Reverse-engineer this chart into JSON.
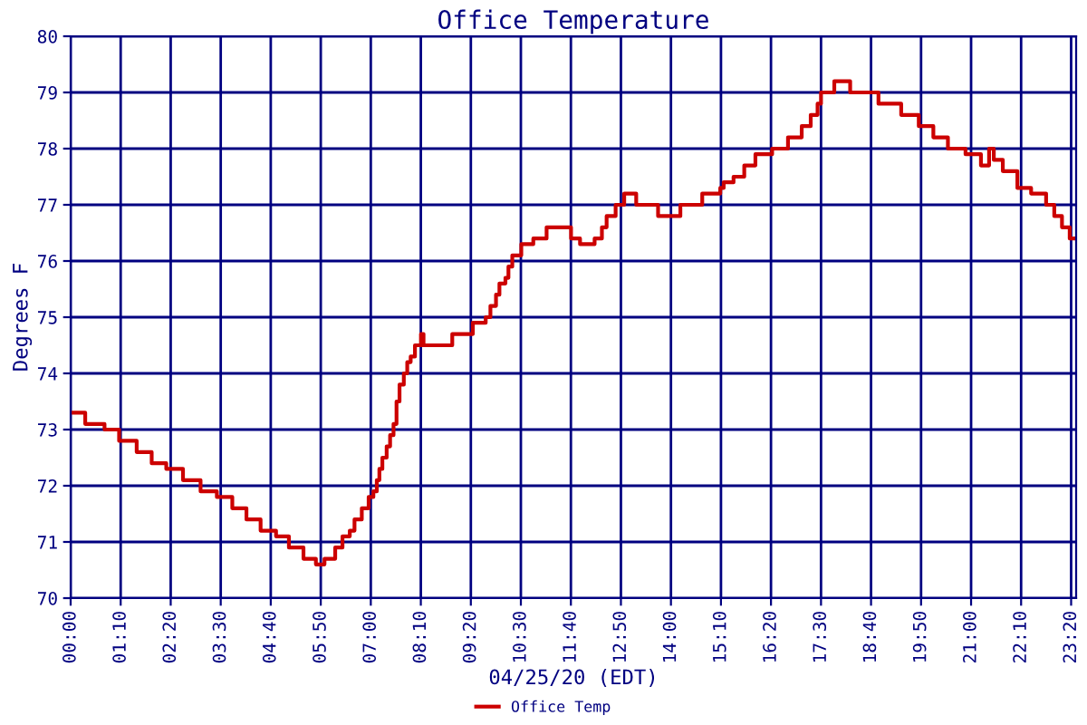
{
  "chart_data": {
    "type": "step",
    "title": "Office Temperature",
    "xlabel": "04/25/20 (EDT)",
    "ylabel": "Degrees F",
    "x": [
      0,
      0.34,
      0.79,
      1.13,
      1.54,
      1.89,
      2.23,
      2.62,
      3.03,
      3.41,
      3.77,
      4.1,
      4.43,
      4.79,
      5.09,
      5.43,
      5.72,
      5.92,
      6.17,
      6.34,
      6.51,
      6.62,
      6.79,
      6.95,
      7.06,
      7.14,
      7.2,
      7.27,
      7.37,
      7.45,
      7.53,
      7.6,
      7.67,
      7.77,
      7.85,
      7.93,
      8.03,
      8.17,
      8.23,
      8.9,
      9.38,
      9.68,
      9.79,
      9.92,
      10.0,
      10.14,
      10.21,
      10.3,
      10.51,
      10.79,
      11.1,
      11.67,
      11.88,
      12.22,
      12.39,
      12.5,
      12.71,
      12.91,
      13.19,
      13.7,
      14.22,
      14.73,
      15.15,
      15.23,
      15.46,
      15.71,
      15.97,
      16.36,
      16.73,
      17.05,
      17.26,
      17.42,
      17.5,
      17.81,
      18.18,
      18.84,
      19.37,
      19.78,
      20.12,
      20.46,
      20.87,
      21.23,
      21.42,
      21.53,
      21.74,
      22.08,
      22.4,
      22.75,
      22.94,
      23.12,
      23.3,
      23.45
    ],
    "series": [
      {
        "name": "Office Temp",
        "color": "#cc0000",
        "values": [
          73.3,
          73.1,
          73.0,
          72.8,
          72.6,
          72.4,
          72.3,
          72.1,
          71.9,
          71.8,
          71.6,
          71.4,
          71.2,
          71.1,
          70.9,
          70.7,
          70.6,
          70.7,
          70.9,
          71.1,
          71.2,
          71.4,
          71.6,
          71.8,
          71.9,
          72.1,
          72.3,
          72.5,
          72.7,
          72.9,
          73.1,
          73.5,
          73.8,
          74.0,
          74.2,
          74.3,
          74.5,
          74.7,
          74.5,
          74.7,
          74.9,
          75.0,
          75.2,
          75.4,
          75.6,
          75.7,
          75.9,
          76.1,
          76.3,
          76.4,
          76.6,
          76.4,
          76.3,
          76.4,
          76.6,
          76.8,
          77.0,
          77.2,
          77.0,
          76.8,
          77.0,
          77.2,
          77.3,
          77.4,
          77.5,
          77.7,
          77.9,
          78.0,
          78.2,
          78.4,
          78.6,
          78.8,
          79.0,
          79.2,
          79.0,
          78.8,
          78.6,
          78.4,
          78.2,
          78.0,
          77.9,
          77.7,
          78.0,
          77.8,
          77.6,
          77.3,
          77.2,
          77.0,
          76.8,
          76.6,
          76.4,
          76.4
        ]
      }
    ],
    "xlim": [
      0,
      23.45
    ],
    "xticks": [
      {
        "value": 0,
        "label": "00:00"
      },
      {
        "value": 1.1667,
        "label": "01:10"
      },
      {
        "value": 2.3333,
        "label": "02:20"
      },
      {
        "value": 3.5,
        "label": "03:30"
      },
      {
        "value": 4.6667,
        "label": "04:40"
      },
      {
        "value": 5.8333,
        "label": "05:50"
      },
      {
        "value": 7,
        "label": "07:00"
      },
      {
        "value": 8.1667,
        "label": "08:10"
      },
      {
        "value": 9.3333,
        "label": "09:20"
      },
      {
        "value": 10.5,
        "label": "10:30"
      },
      {
        "value": 11.6667,
        "label": "11:40"
      },
      {
        "value": 12.8333,
        "label": "12:50"
      },
      {
        "value": 14,
        "label": "14:00"
      },
      {
        "value": 15.1667,
        "label": "15:10"
      },
      {
        "value": 16.3333,
        "label": "16:20"
      },
      {
        "value": 17.5,
        "label": "17:30"
      },
      {
        "value": 18.6667,
        "label": "18:40"
      },
      {
        "value": 19.8333,
        "label": "19:50"
      },
      {
        "value": 21,
        "label": "21:00"
      },
      {
        "value": 22.1667,
        "label": "22:10"
      },
      {
        "value": 23.3333,
        "label": "23:20"
      }
    ],
    "ylim": [
      70,
      80
    ],
    "yticks": [
      70,
      71,
      72,
      73,
      74,
      75,
      76,
      77,
      78,
      79,
      80
    ],
    "grid": true,
    "legend": "bottom",
    "line_style": "solid",
    "marker": "none"
  }
}
